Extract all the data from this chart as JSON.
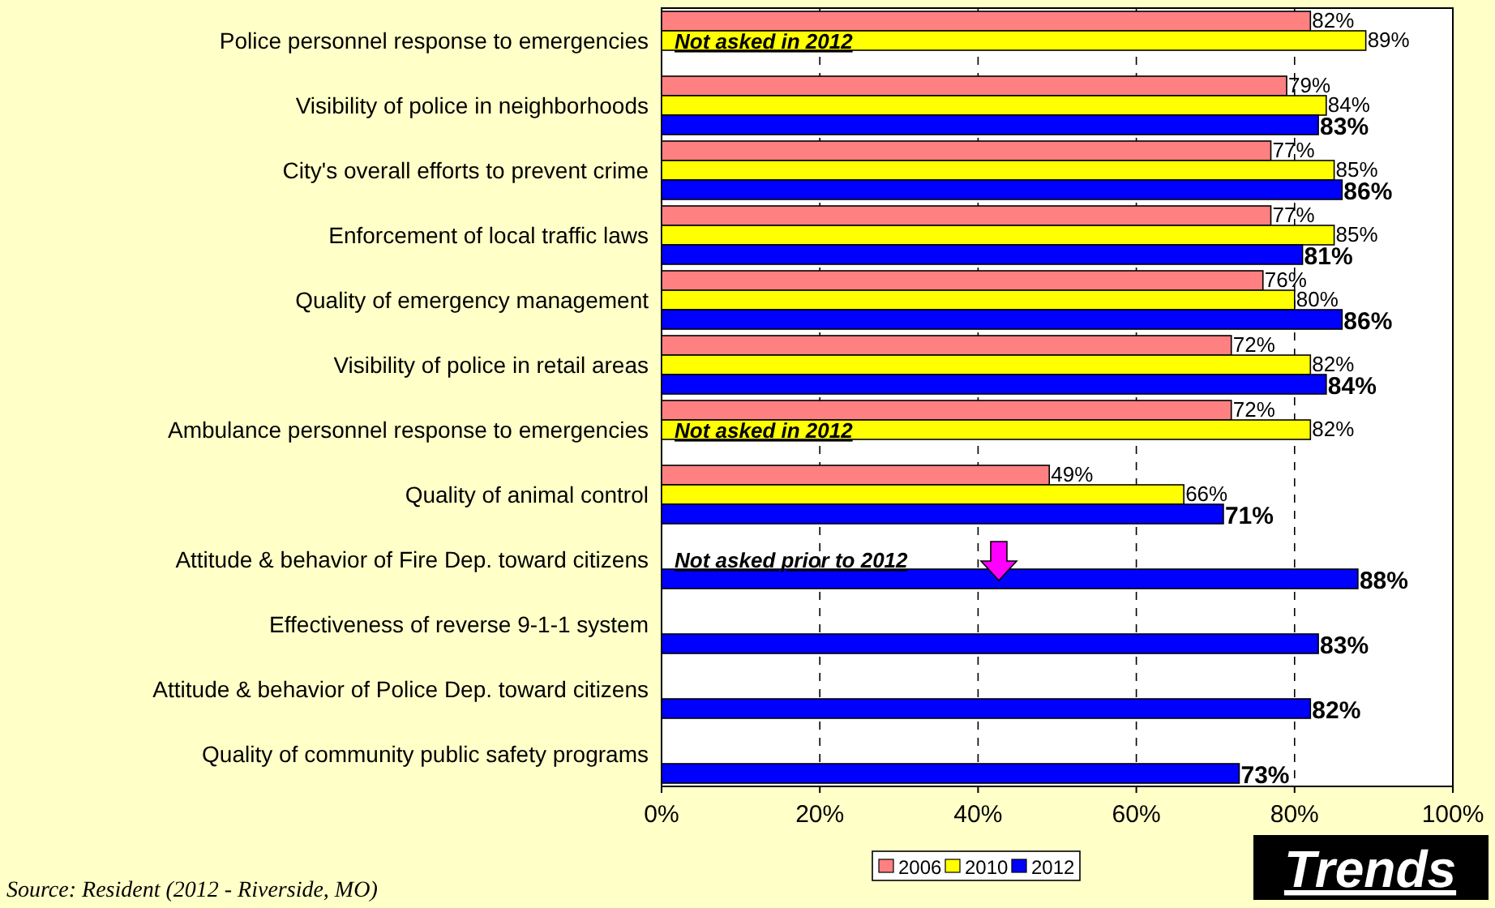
{
  "chart_data": {
    "type": "bar",
    "orientation": "horizontal",
    "categories": [
      "Police personnel response to emergencies",
      "Visibility of police in neighborhoods",
      "City's overall efforts to prevent crime",
      "Enforcement of local traffic laws",
      "Quality of emergency management",
      "Visibility of police in retail areas",
      "Ambulance personnel response to emergencies",
      "Quality of animal control",
      "Attitude & behavior of Fire Dep. toward citizens",
      "Effectiveness of reverse 9-1-1 system",
      "Attitude & behavior of Police Dep. toward citizens",
      "Quality of community public safety programs"
    ],
    "series": [
      {
        "name": "2006",
        "color": "#ff8080",
        "values": [
          82,
          79,
          77,
          77,
          76,
          72,
          72,
          49,
          null,
          null,
          null,
          null
        ],
        "value_labels": [
          "82%",
          "79%",
          "77%",
          "77%",
          "76%",
          "72%",
          "72%",
          "49%",
          null,
          null,
          null,
          null
        ]
      },
      {
        "name": "2010",
        "color": "#ffff00",
        "values": [
          89,
          84,
          85,
          85,
          80,
          82,
          82,
          66,
          null,
          null,
          null,
          null
        ],
        "value_labels": [
          "89%",
          "84%",
          "85%",
          "85%",
          "80%",
          "82%",
          "82%",
          "66%",
          null,
          null,
          null,
          null
        ]
      },
      {
        "name": "2012",
        "color": "#0000ff",
        "values": [
          null,
          83,
          86,
          81,
          86,
          84,
          null,
          71,
          88,
          83,
          82,
          73
        ],
        "value_labels": [
          null,
          "83%",
          "86%",
          "81%",
          "86%",
          "84%",
          null,
          "71%",
          "88%",
          "83%",
          "82%",
          "73%"
        ]
      }
    ],
    "xlim": [
      0,
      100
    ],
    "xticks": [
      {
        "value": 0,
        "label": "0%"
      },
      {
        "value": 20,
        "label": "20%"
      },
      {
        "value": 40,
        "label": "40%"
      },
      {
        "value": 60,
        "label": "60%"
      },
      {
        "value": 80,
        "label": "80%"
      },
      {
        "value": 100,
        "label": "100%"
      }
    ],
    "grid": "x",
    "legend": "bottom",
    "annotations": [
      "Not asked in 2012",
      "Not asked in 2012",
      "Not asked prior to 2012",
      "Source: Resident (2012 - Riverside, MO)",
      "Trends"
    ]
  }
}
